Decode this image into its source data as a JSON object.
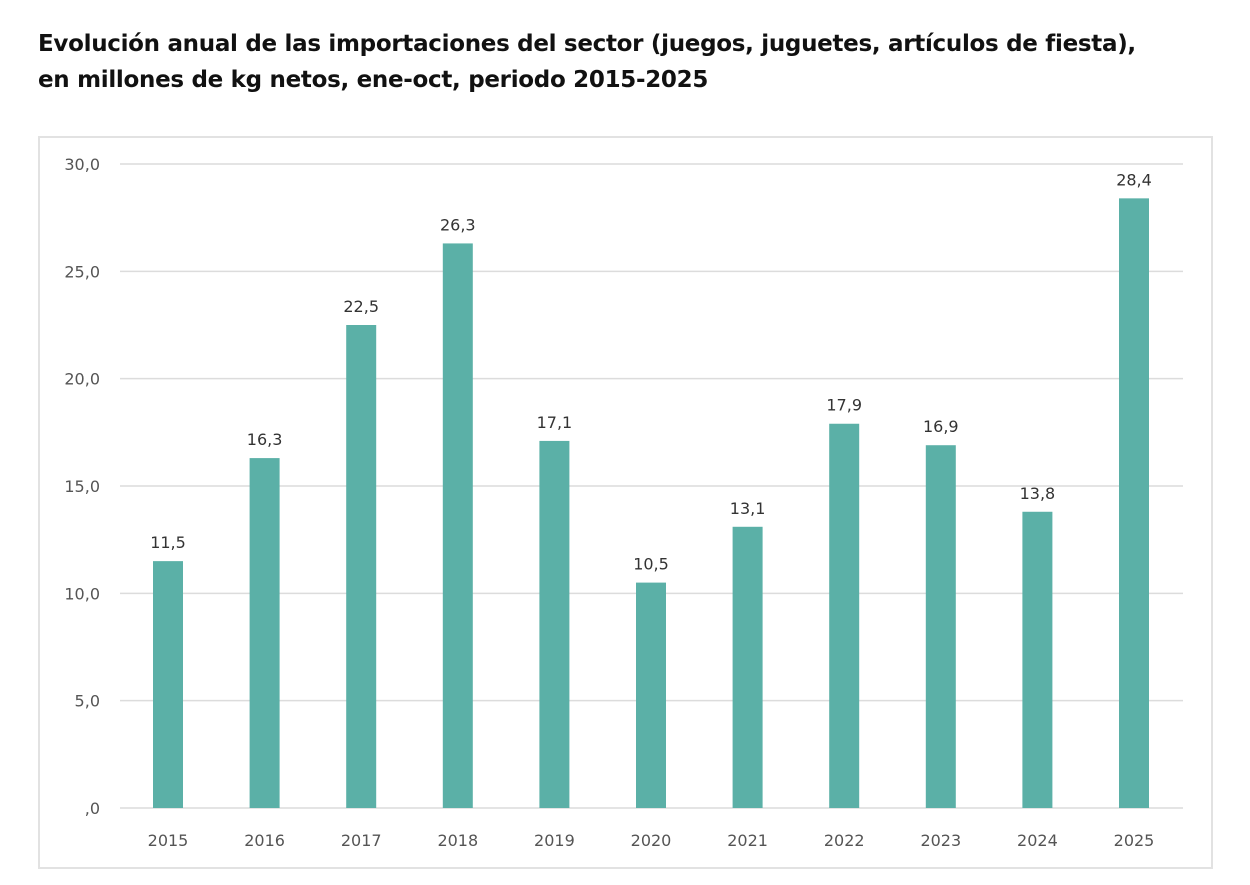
{
  "title_line1": "Evolución anual de las importaciones del sector (juegos, juguetes, artículos de fiesta),",
  "title_line2": "en millones de kg netos, ene-oct, periodo 2015-2025",
  "chart_data": {
    "type": "bar",
    "title": "Evolución anual de las importaciones del sector (juegos, juguetes, artículos de fiesta), en millones de kg netos, ene-oct, periodo 2015-2025",
    "categories": [
      "2015",
      "2016",
      "2017",
      "2018",
      "2019",
      "2020",
      "2021",
      "2022",
      "2023",
      "2024",
      "2025"
    ],
    "values": [
      11.5,
      16.3,
      22.5,
      26.3,
      17.1,
      10.5,
      13.1,
      17.9,
      16.9,
      13.8,
      28.4
    ],
    "data_labels": [
      "11,5",
      "16,3",
      "22,5",
      "26,3",
      "17,1",
      "10,5",
      "13,1",
      "17,9",
      "16,9",
      "13,8",
      "28,4"
    ],
    "ylim": [
      0,
      30
    ],
    "yticks": [
      0,
      5,
      10,
      15,
      20,
      25,
      30
    ],
    "ytick_labels": [
      ",0",
      "5,0",
      "10,0",
      "15,0",
      "20,0",
      "25,0",
      "30,0"
    ],
    "xlabel": "",
    "ylabel": "",
    "grid": true,
    "legend": "none",
    "bar_color": "#5bb0a7"
  }
}
